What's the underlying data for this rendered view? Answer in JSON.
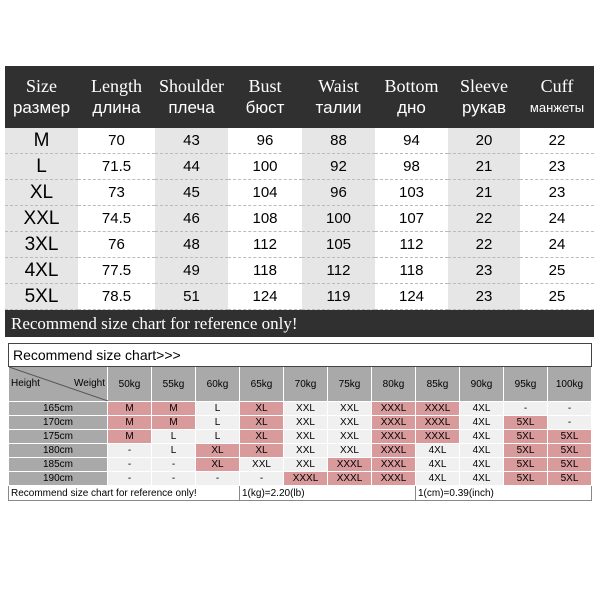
{
  "measurements": {
    "headers": [
      {
        "en": "Size",
        "ru": "размер"
      },
      {
        "en": "Length",
        "ru": "длина"
      },
      {
        "en": "Shoulder",
        "ru": "плеча"
      },
      {
        "en": "Bust",
        "ru": "бюст"
      },
      {
        "en": "Waist",
        "ru": "талии"
      },
      {
        "en": "Bottom",
        "ru": "дно"
      },
      {
        "en": "Sleeve",
        "ru": "рукав"
      },
      {
        "en": "Cuff",
        "ru": "манжеты"
      }
    ],
    "rows": [
      [
        "M",
        "70",
        "43",
        "96",
        "88",
        "94",
        "20",
        "22"
      ],
      [
        "L",
        "71.5",
        "44",
        "100",
        "92",
        "98",
        "21",
        "23"
      ],
      [
        "XL",
        "73",
        "45",
        "104",
        "96",
        "103",
        "21",
        "23"
      ],
      [
        "XXL",
        "74.5",
        "46",
        "108",
        "100",
        "107",
        "22",
        "24"
      ],
      [
        "3XL",
        "76",
        "48",
        "112",
        "105",
        "112",
        "22",
        "24"
      ],
      [
        "4XL",
        "77.5",
        "49",
        "118",
        "112",
        "118",
        "23",
        "25"
      ],
      [
        "5XL",
        "78.5",
        "51",
        "124",
        "119",
        "124",
        "23",
        "25"
      ]
    ],
    "footer": "Recommend size chart for reference only!"
  },
  "recommend": {
    "title": "Recommend size chart>>>",
    "height_label": "Height",
    "weight_label": "Weight",
    "weights": [
      "50kg",
      "55kg",
      "60kg",
      "65kg",
      "70kg",
      "75kg",
      "80kg",
      "85kg",
      "90kg",
      "95kg",
      "100kg"
    ],
    "highlight_color": "#d99a9c",
    "rows": [
      {
        "height": "165cm",
        "sizes": [
          "M",
          "M",
          "L",
          "XL",
          "XXL",
          "XXL",
          "XXXL",
          "XXXL",
          "4XL",
          "-",
          "-"
        ],
        "highlight": [
          1,
          1,
          0,
          1,
          0,
          0,
          1,
          1,
          0,
          0,
          0
        ]
      },
      {
        "height": "170cm",
        "sizes": [
          "M",
          "M",
          "L",
          "XL",
          "XXL",
          "XXL",
          "XXXL",
          "XXXL",
          "4XL",
          "5XL",
          "-"
        ],
        "highlight": [
          1,
          1,
          0,
          1,
          0,
          0,
          1,
          1,
          0,
          1,
          0
        ]
      },
      {
        "height": "175cm",
        "sizes": [
          "M",
          "L",
          "L",
          "XL",
          "XXL",
          "XXL",
          "XXXL",
          "XXXL",
          "4XL",
          "5XL",
          "5XL"
        ],
        "highlight": [
          1,
          0,
          0,
          1,
          0,
          0,
          1,
          1,
          0,
          1,
          1
        ]
      },
      {
        "height": "180cm",
        "sizes": [
          "-",
          "L",
          "XL",
          "XL",
          "XXL",
          "XXL",
          "XXXL",
          "4XL",
          "4XL",
          "5XL",
          "5XL"
        ],
        "highlight": [
          0,
          0,
          1,
          1,
          0,
          0,
          1,
          0,
          0,
          1,
          1
        ]
      },
      {
        "height": "185cm",
        "sizes": [
          "-",
          "-",
          "XL",
          "XXL",
          "XXL",
          "XXXL",
          "XXXL",
          "4XL",
          "4XL",
          "5XL",
          "5XL"
        ],
        "highlight": [
          0,
          0,
          1,
          0,
          0,
          1,
          1,
          0,
          0,
          1,
          1
        ]
      },
      {
        "height": "190cm",
        "sizes": [
          "-",
          "-",
          "-",
          "-",
          "XXXL",
          "XXXL",
          "XXXL",
          "4XL",
          "4XL",
          "5XL",
          "5XL"
        ],
        "highlight": [
          0,
          0,
          0,
          0,
          1,
          1,
          1,
          0,
          0,
          1,
          1
        ]
      }
    ],
    "footer": {
      "note": "Recommend size chart for reference only!",
      "kg": "1(kg)=2.20(lb)",
      "cm": "1(cm)=0.39(inch)"
    }
  }
}
